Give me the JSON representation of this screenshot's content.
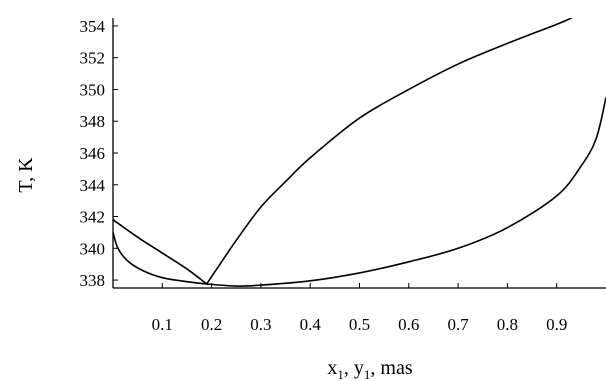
{
  "chart_data": {
    "type": "line",
    "xlabel_parts": [
      {
        "text": "x",
        "sub": false
      },
      {
        "text": "1",
        "sub": true
      },
      {
        "text": ", y",
        "sub": false
      },
      {
        "text": "1",
        "sub": true
      },
      {
        "text": ", mas",
        "sub": false
      }
    ],
    "ylabel": "T, K",
    "xlim": [
      0,
      1.0
    ],
    "ylim": [
      337.5,
      354.5
    ],
    "x_ticks": [
      0.1,
      0.2,
      0.3,
      0.4,
      0.5,
      0.6,
      0.7,
      0.8,
      0.9
    ],
    "x_tick_labels": [
      "0.1",
      "0.2",
      "0.3",
      "0.4",
      "0.5",
      "0.6",
      "0.7",
      "0.8",
      "0.9"
    ],
    "y_ticks": [
      338,
      340,
      342,
      344,
      346,
      348,
      350,
      352,
      354
    ],
    "y_tick_labels": [
      "338",
      "340",
      "342",
      "344",
      "346",
      "348",
      "350",
      "352",
      "354"
    ],
    "grid": false,
    "series": [
      {
        "stroke": "#000000",
        "points": [
          [
            0.0,
            341.8
          ],
          [
            0.05,
            340.7
          ],
          [
            0.1,
            339.7
          ],
          [
            0.15,
            338.7
          ],
          [
            0.19,
            337.75
          ]
        ]
      },
      {
        "stroke": "#000000",
        "points": [
          [
            0.0,
            341.0
          ],
          [
            0.01,
            340.0
          ],
          [
            0.03,
            339.2
          ],
          [
            0.06,
            338.6
          ],
          [
            0.1,
            338.15
          ],
          [
            0.15,
            337.9
          ],
          [
            0.19,
            337.75
          ]
        ]
      },
      {
        "stroke": "#000000",
        "points": [
          [
            0.19,
            337.75
          ],
          [
            0.25,
            340.5
          ],
          [
            0.3,
            342.6
          ],
          [
            0.35,
            344.2
          ],
          [
            0.4,
            345.7
          ],
          [
            0.5,
            348.2
          ],
          [
            0.6,
            350.0
          ],
          [
            0.7,
            351.6
          ],
          [
            0.8,
            352.9
          ],
          [
            0.9,
            354.1
          ],
          [
            0.93,
            354.5
          ]
        ]
      },
      {
        "stroke": "#000000",
        "points": [
          [
            0.19,
            337.75
          ],
          [
            0.25,
            337.62
          ],
          [
            0.3,
            337.68
          ],
          [
            0.4,
            337.95
          ],
          [
            0.5,
            338.45
          ],
          [
            0.6,
            339.15
          ],
          [
            0.7,
            340.0
          ],
          [
            0.8,
            341.3
          ],
          [
            0.9,
            343.3
          ],
          [
            0.95,
            345.2
          ],
          [
            0.98,
            346.9
          ],
          [
            1.0,
            349.5
          ]
        ]
      }
    ]
  }
}
